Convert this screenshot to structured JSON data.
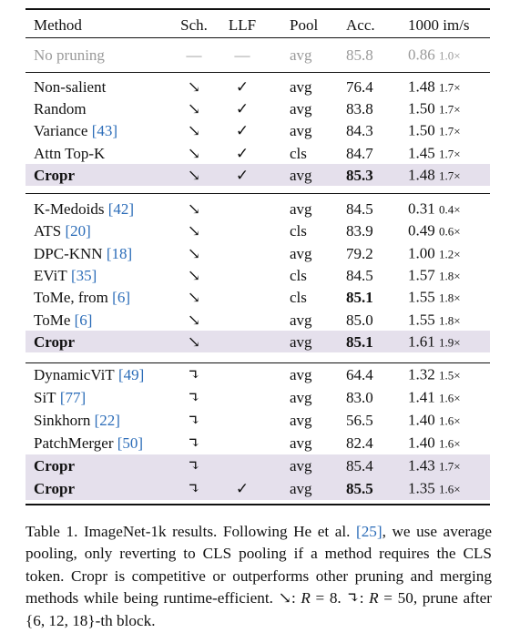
{
  "table": {
    "header": [
      "Method",
      "Sch.",
      "LLF",
      "Pool",
      "Acc.",
      "1000 im/s"
    ],
    "sections": [
      {
        "rows": [
          {
            "method": "No pruning",
            "sch": "—",
            "llf": "—",
            "pool": "avg",
            "acc": "85.8",
            "speed": "0.86",
            "speedup": "1.0×",
            "muted": true
          }
        ]
      },
      {
        "rows": [
          {
            "method": "Non-salient",
            "sch": "↘",
            "llf": "✓",
            "pool": "avg",
            "acc": "76.4",
            "speed": "1.48",
            "speedup": "1.7×"
          },
          {
            "method": "Random",
            "sch": "↘",
            "llf": "✓",
            "pool": "avg",
            "acc": "83.8",
            "speed": "1.50",
            "speedup": "1.7×"
          },
          {
            "method": "Variance",
            "cite": "[43]",
            "sch": "↘",
            "llf": "✓",
            "pool": "avg",
            "acc": "84.3",
            "speed": "1.50",
            "speedup": "1.7×"
          },
          {
            "method": "Attn Top-K",
            "sch": "↘",
            "llf": "✓",
            "pool": "cls",
            "acc": "84.7",
            "speed": "1.45",
            "speedup": "1.7×"
          },
          {
            "method": "Cropr",
            "sch": "↘",
            "llf": "✓",
            "pool": "avg",
            "acc": "85.3",
            "speed": "1.48",
            "speedup": "1.7×",
            "highlight": true,
            "bold_acc": true
          }
        ]
      },
      {
        "rows": [
          {
            "method": "K-Medoids",
            "cite": "[42]",
            "sch": "↘",
            "pool": "avg",
            "acc": "84.5",
            "speed": "0.31",
            "speedup": "0.4×"
          },
          {
            "method": "ATS",
            "cite": "[20]",
            "sch": "↘",
            "pool": "cls",
            "acc": "83.9",
            "speed": "0.49",
            "speedup": "0.6×"
          },
          {
            "method": "DPC-KNN",
            "cite": "[18]",
            "sch": "↘",
            "pool": "avg",
            "acc": "79.2",
            "speed": "1.00",
            "speedup": "1.2×"
          },
          {
            "method": "EViT",
            "cite": "[35]",
            "sch": "↘",
            "pool": "cls",
            "acc": "84.5",
            "speed": "1.57",
            "speedup": "1.8×"
          },
          {
            "method": "ToMe, from",
            "cite": "[6]",
            "sch": "↘",
            "pool": "cls",
            "acc": "85.1",
            "speed": "1.55",
            "speedup": "1.8×",
            "bold_acc": true
          },
          {
            "method": "ToMe",
            "cite": "[6]",
            "sch": "↘",
            "pool": "avg",
            "acc": "85.0",
            "speed": "1.55",
            "speedup": "1.8×"
          },
          {
            "method": "Cropr",
            "sch": "↘",
            "pool": "avg",
            "acc": "85.1",
            "speed": "1.61",
            "speedup": "1.9×",
            "highlight": true,
            "bold_acc": true
          }
        ]
      },
      {
        "rows": [
          {
            "method": "DynamicViT",
            "cite": "[49]",
            "sch": "↴",
            "pool": "avg",
            "acc": "64.4",
            "speed": "1.32",
            "speedup": "1.5×"
          },
          {
            "method": "SiT",
            "cite": "[77]",
            "sch": "↴",
            "pool": "avg",
            "acc": "83.0",
            "speed": "1.41",
            "speedup": "1.6×"
          },
          {
            "method": "Sinkhorn",
            "cite": "[22]",
            "sch": "↴",
            "pool": "avg",
            "acc": "56.5",
            "speed": "1.40",
            "speedup": "1.6×"
          },
          {
            "method": "PatchMerger",
            "cite": "[50]",
            "sch": "↴",
            "pool": "avg",
            "acc": "82.4",
            "speed": "1.40",
            "speedup": "1.6×"
          },
          {
            "method": "Cropr",
            "sch": "↴",
            "pool": "avg",
            "acc": "85.4",
            "speed": "1.43",
            "speedup": "1.7×",
            "highlight": true
          },
          {
            "method": "Cropr",
            "sch": "↴",
            "llf": "✓",
            "pool": "avg",
            "acc": "85.5",
            "speed": "1.35",
            "speedup": "1.6×",
            "highlight": true,
            "bold_acc": true
          }
        ]
      }
    ]
  },
  "caption": [
    {
      "text": "Table 1. ImageNet-1k results. Following He et al. "
    },
    {
      "text": "[25]",
      "style": "cite"
    },
    {
      "text": ", we use average pooling, only reverting to CLS pooling if a method requires the CLS token. Cropr is competitive or outperforms other pruning and merging methods while being runtime-efficient. ↘: "
    },
    {
      "text": "R",
      "style": "math"
    },
    {
      "text": " = 8. ↴: "
    },
    {
      "text": "R",
      "style": "math"
    },
    {
      "text": " = 50, prune after {6, 12, 18}-th block."
    }
  ]
}
